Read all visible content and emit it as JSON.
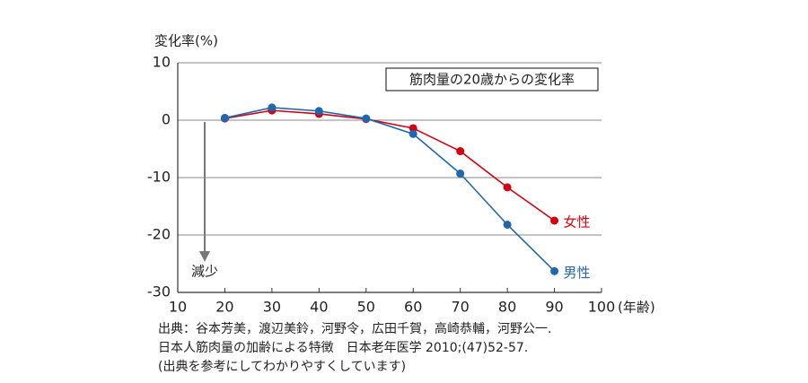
{
  "chart_data": {
    "type": "line",
    "title": "筋肉量の20歳からの変化率",
    "y_label": "変化率(%)",
    "x_label": "(年齢)",
    "arrow_label": "減少",
    "notes": [
      "出典：谷本芳美，渡辺美鈴，河野令，広田千賀，高崎恭輔，河野公一.",
      "日本人筋肉量の加齢による特徴　日本老年医学 2010;(47)52-57.",
      "(出典を参考にしてわかりやすくしています)"
    ],
    "x": [
      20,
      30,
      40,
      50,
      60,
      70,
      80,
      90
    ],
    "series": [
      {
        "name": "女性",
        "color": "#d7000f",
        "values": [
          0.3,
          1.7,
          1.1,
          0.2,
          -1.4,
          -5.4,
          -11.7,
          -17.5
        ]
      },
      {
        "name": "男性",
        "color": "#1f68b0",
        "values": [
          0.4,
          2.2,
          1.6,
          0.3,
          -2.4,
          -9.3,
          -18.2,
          -26.3
        ]
      }
    ],
    "xlim": [
      10,
      100
    ],
    "xticks": [
      10,
      20,
      30,
      40,
      50,
      60,
      70,
      80,
      90,
      100
    ],
    "ylim": [
      -30,
      10
    ],
    "yticks": [
      -30,
      -20,
      -10,
      0,
      10
    ],
    "grid": true
  }
}
